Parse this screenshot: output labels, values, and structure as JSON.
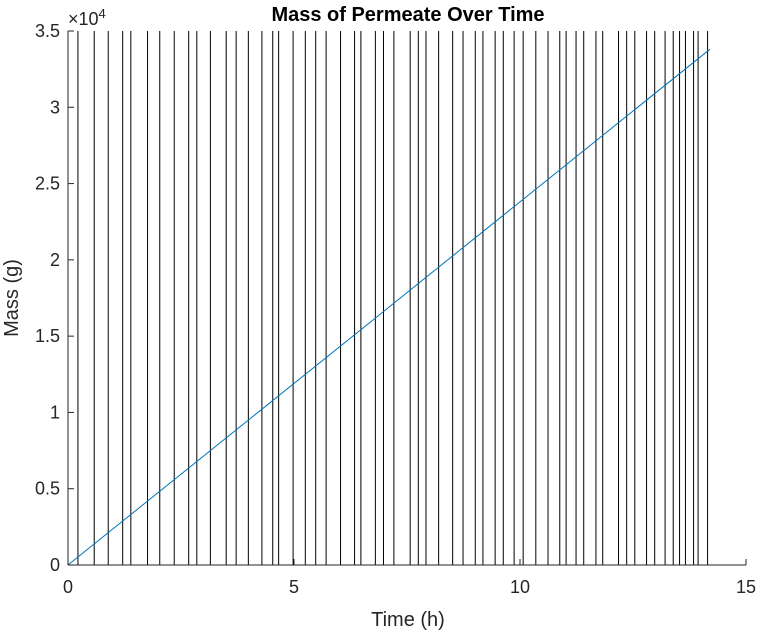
{
  "chart_data": {
    "type": "line",
    "title": "Mass of Permeate Over Time",
    "xlabel": "Time (h)",
    "ylabel": "Mass (g)",
    "xlim": [
      0,
      15
    ],
    "ylim": [
      0,
      35000
    ],
    "x_ticks": [
      0,
      5,
      10,
      15
    ],
    "x_tick_labels": [
      "0",
      "5",
      "10",
      "15"
    ],
    "y_ticks": [
      0,
      5000,
      10000,
      15000,
      20000,
      25000,
      30000,
      35000
    ],
    "y_tick_labels": [
      "0",
      "0.5",
      "1",
      "1.5",
      "2",
      "2.5",
      "3",
      "3.5"
    ],
    "y_exponent_label": {
      "base": "×10",
      "power": "4"
    },
    "grid": false,
    "colors": {
      "series": "#0072BD",
      "vlines": "#000000",
      "axis": "#262626"
    },
    "series": [
      {
        "x": [
          0,
          14.2
        ],
        "y": [
          0,
          33800
        ]
      }
    ],
    "vertical_lines_x": [
      0.22,
      0.58,
      0.89,
      1.21,
      1.39,
      1.76,
      2.03,
      2.35,
      2.67,
      2.85,
      3.15,
      3.5,
      3.72,
      3.99,
      4.29,
      4.53,
      4.66,
      4.98,
      5.25,
      5.48,
      5.71,
      6.03,
      6.34,
      6.48,
      6.8,
      6.98,
      7.21,
      7.57,
      7.75,
      7.92,
      8.2,
      8.51,
      8.74,
      9.01,
      9.18,
      9.45,
      9.63,
      9.87,
      10.07,
      10.35,
      10.62,
      10.88,
      11.02,
      11.24,
      11.41,
      11.68,
      11.83,
      12.18,
      12.36,
      12.54,
      12.8,
      12.98,
      13.21,
      13.39,
      13.53,
      13.66,
      13.84,
      13.94,
      14.15
    ]
  }
}
